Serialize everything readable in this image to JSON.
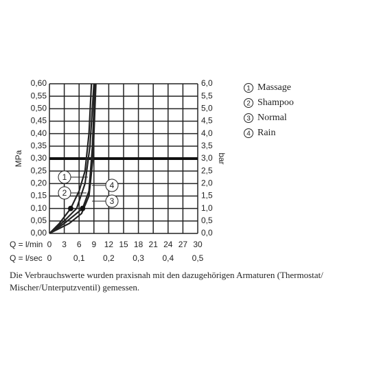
{
  "chart_data": {
    "type": "line",
    "ylabel": "MPa",
    "y2label": "bar",
    "xlabel": "Q = l/min",
    "x2label": "Q = l/sec",
    "xlim": [
      0,
      30
    ],
    "xticks": [
      0,
      3,
      6,
      9,
      12,
      15,
      18,
      21,
      24,
      27,
      30
    ],
    "x2lim": [
      0,
      0.5
    ],
    "x2ticks": [
      0,
      {
        "value": 0.1,
        "label": "0,1"
      },
      {
        "value": 0.2,
        "label": "0,2"
      },
      {
        "value": 0.3,
        "label": "0,3"
      },
      {
        "value": 0.4,
        "label": "0,4"
      },
      {
        "value": 0.5,
        "label": "0,5"
      }
    ],
    "ylim": [
      0,
      0.6
    ],
    "yticks": [
      {
        "value": 0,
        "label": "0,00"
      },
      {
        "value": 0.05,
        "label": "0,05"
      },
      {
        "value": 0.1,
        "label": "0,10"
      },
      {
        "value": 0.15,
        "label": "0,15"
      },
      {
        "value": 0.2,
        "label": "0,20"
      },
      {
        "value": 0.25,
        "label": "0,25"
      },
      {
        "value": 0.3,
        "label": "0,30"
      },
      {
        "value": 0.35,
        "label": "0,35"
      },
      {
        "value": 0.4,
        "label": "0,40"
      },
      {
        "value": 0.45,
        "label": "0,45"
      },
      {
        "value": 0.5,
        "label": "0,50"
      },
      {
        "value": 0.55,
        "label": "0,55"
      },
      {
        "value": 0.6,
        "label": "0,60"
      }
    ],
    "y2lim": [
      0,
      6
    ],
    "y2ticks": [
      {
        "value": 0,
        "label": "0,0"
      },
      {
        "value": 0.5,
        "label": "0,5"
      },
      {
        "value": 1,
        "label": "1,0"
      },
      {
        "value": 1.5,
        "label": "1,5"
      },
      {
        "value": 2,
        "label": "2,0"
      },
      {
        "value": 2.5,
        "label": "2,5"
      },
      {
        "value": 3,
        "label": "3,0"
      },
      {
        "value": 3.5,
        "label": "3,5"
      },
      {
        "value": 4,
        "label": "4,0"
      },
      {
        "value": 4.5,
        "label": "4,5"
      },
      {
        "value": 5,
        "label": "5,0"
      },
      {
        "value": 5.5,
        "label": "5,5"
      },
      {
        "value": 6,
        "label": "6,0"
      }
    ],
    "grid": true,
    "color": "#222222",
    "reference_line": 0.3,
    "series": [
      {
        "name": "Massage",
        "number": "1",
        "x": [
          0,
          2,
          4.3,
          6,
          7.2,
          8,
          8.5
        ],
        "values": [
          0,
          0.04,
          0.1,
          0.17,
          0.25,
          0.4,
          0.6
        ]
      },
      {
        "name": "Shampoo",
        "number": "2",
        "x": [
          0,
          3,
          6.7,
          8,
          8.7,
          9.2
        ],
        "values": [
          0,
          0.04,
          0.1,
          0.17,
          0.35,
          0.6
        ]
      },
      {
        "name": "Normal",
        "number": "3",
        "x": [
          0,
          4,
          6.5,
          8,
          8.8,
          9.4
        ],
        "values": [
          0,
          0.04,
          0.08,
          0.15,
          0.3,
          0.6
        ]
      },
      {
        "name": "Rain",
        "number": "4",
        "x": [
          0,
          3,
          5.5,
          7.2,
          8.2,
          9
        ],
        "values": [
          0,
          0.05,
          0.1,
          0.2,
          0.35,
          0.6
        ]
      }
    ],
    "markers": [
      {
        "x": 4.3,
        "y": 0.1
      },
      {
        "x": 6.7,
        "y": 0.1
      }
    ],
    "note": "Die Verbrauchswerte wurden praxisnah mit den dazugehörigen Armaturen (Thermostat/",
    "note2": "Mischer/Unterputzventil) gemessen."
  }
}
